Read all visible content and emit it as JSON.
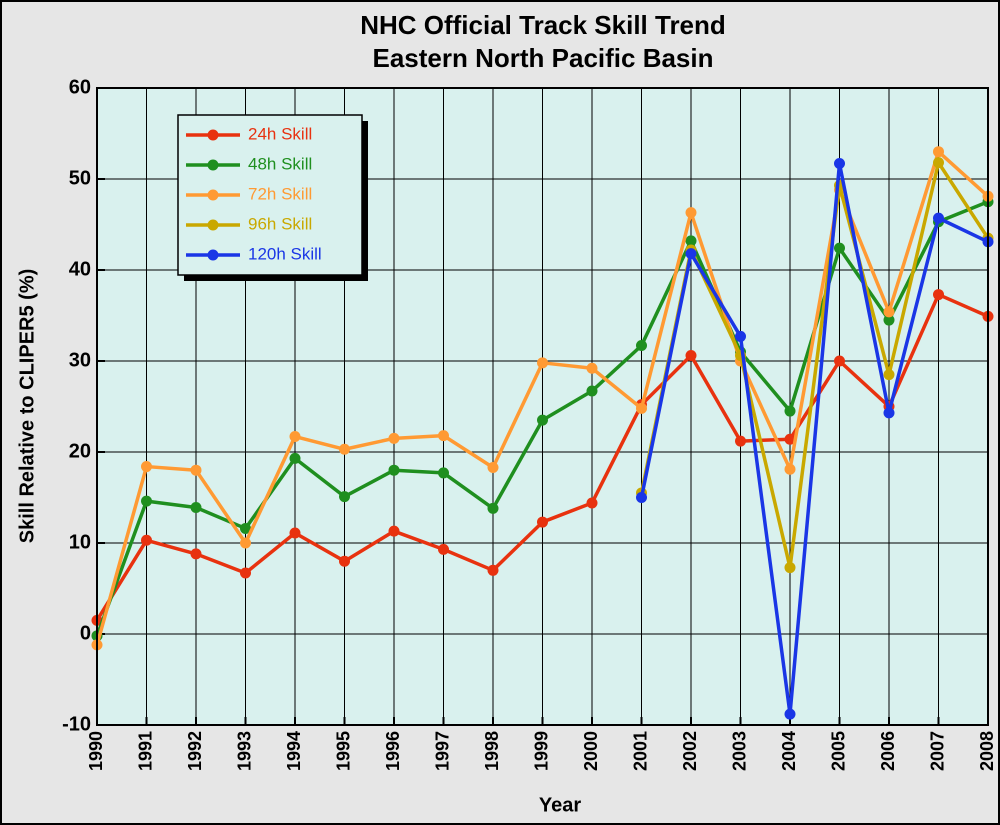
{
  "chart_data": {
    "type": "line",
    "title": "NHC Official Track Skill Trend",
    "subtitle": "Eastern North Pacific Basin",
    "xlabel": "Year",
    "ylabel": "Skill Relative to CLIPER5 (%)",
    "x": [
      1990,
      1991,
      1992,
      1993,
      1994,
      1995,
      1996,
      1997,
      1998,
      1999,
      2000,
      2001,
      2002,
      2003,
      2004,
      2005,
      2006,
      2007,
      2008
    ],
    "xlim": [
      1990,
      2008
    ],
    "xticks": [
      1990,
      1991,
      1992,
      1993,
      1994,
      1995,
      1996,
      1997,
      1998,
      1999,
      2000,
      2001,
      2002,
      2003,
      2004,
      2005,
      2006,
      2007,
      2008
    ],
    "ylim": [
      -10,
      60
    ],
    "yticks": [
      -10,
      0,
      10,
      20,
      30,
      40,
      50,
      60
    ],
    "grid": true,
    "legend": "upper left",
    "series": [
      {
        "name": "24h Skill",
        "color": "#e8320f",
        "values": [
          1.5,
          10.3,
          8.8,
          6.7,
          11.1,
          8.0,
          11.3,
          9.3,
          7.0,
          12.3,
          14.4,
          25.2,
          30.6,
          21.2,
          21.4,
          30.0,
          25.0,
          37.3,
          34.9
        ]
      },
      {
        "name": "48h Skill",
        "color": "#1f8f1f",
        "values": [
          -0.2,
          14.6,
          13.9,
          11.6,
          19.3,
          15.1,
          18.0,
          17.7,
          13.8,
          23.5,
          26.7,
          31.7,
          43.2,
          31.0,
          24.5,
          42.4,
          34.5,
          45.3,
          47.5
        ]
      },
      {
        "name": "72h Skill",
        "color": "#ff9a33",
        "values": [
          -1.2,
          18.4,
          18.0,
          10.0,
          21.7,
          20.3,
          21.5,
          21.8,
          18.3,
          29.8,
          29.2,
          24.8,
          46.3,
          30.0,
          18.1,
          48.8,
          35.4,
          53.0,
          48.1
        ]
      },
      {
        "name": "96h Skill",
        "color": "#c9a800",
        "values": [
          null,
          null,
          null,
          null,
          null,
          null,
          null,
          null,
          null,
          null,
          null,
          15.5,
          42.2,
          30.6,
          7.3,
          49.3,
          28.5,
          51.8,
          43.5
        ]
      },
      {
        "name": "120h Skill",
        "color": "#1a36e6",
        "values": [
          null,
          null,
          null,
          null,
          null,
          null,
          null,
          null,
          null,
          null,
          null,
          15.0,
          41.8,
          32.7,
          -8.8,
          51.7,
          24.3,
          45.7,
          43.1
        ]
      }
    ]
  }
}
